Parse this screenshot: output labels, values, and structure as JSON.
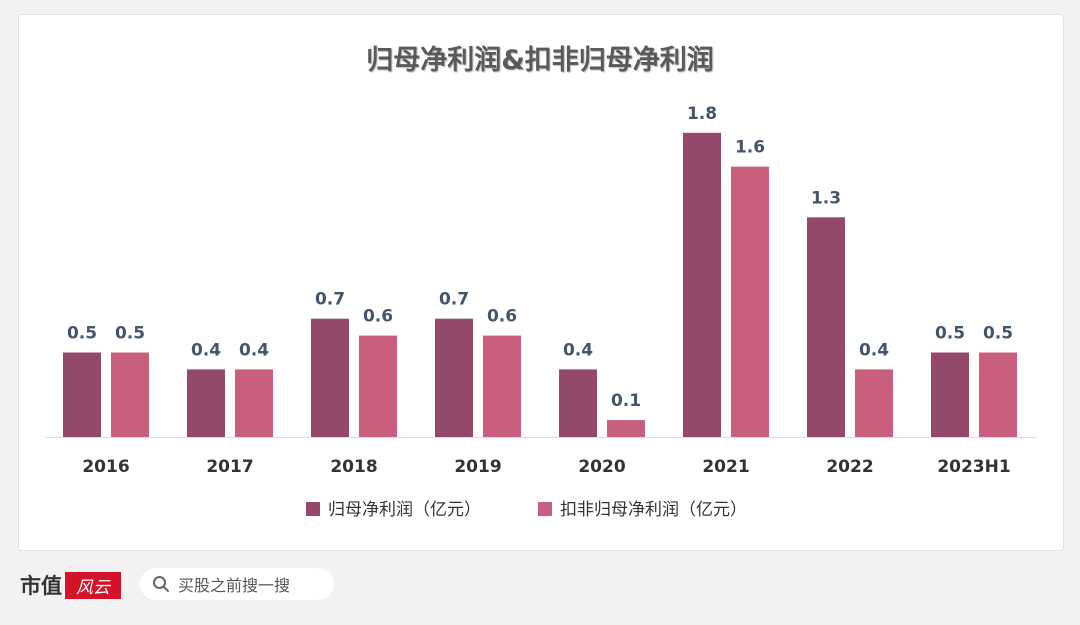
{
  "chart_data": {
    "type": "bar",
    "title": "归母净利润&扣非归母净利润",
    "categories": [
      "2016",
      "2017",
      "2018",
      "2019",
      "2020",
      "2021",
      "2022",
      "2023H1"
    ],
    "series": [
      {
        "name": "归母净利润（亿元）",
        "color": "#93486c",
        "values": [
          0.5,
          0.4,
          0.7,
          0.7,
          0.4,
          1.8,
          1.3,
          0.5
        ]
      },
      {
        "name": "扣非归母净利润（亿元）",
        "color": "#c8607d",
        "values": [
          0.5,
          0.4,
          0.6,
          0.6,
          0.1,
          1.6,
          0.4,
          0.5
        ]
      }
    ],
    "grid": false,
    "legend": "bottom"
  },
  "footer": {
    "brand_text": "市值",
    "brand_seal_text": "风云",
    "search_text": "买股之前搜一搜",
    "search_icon": "search-icon"
  }
}
